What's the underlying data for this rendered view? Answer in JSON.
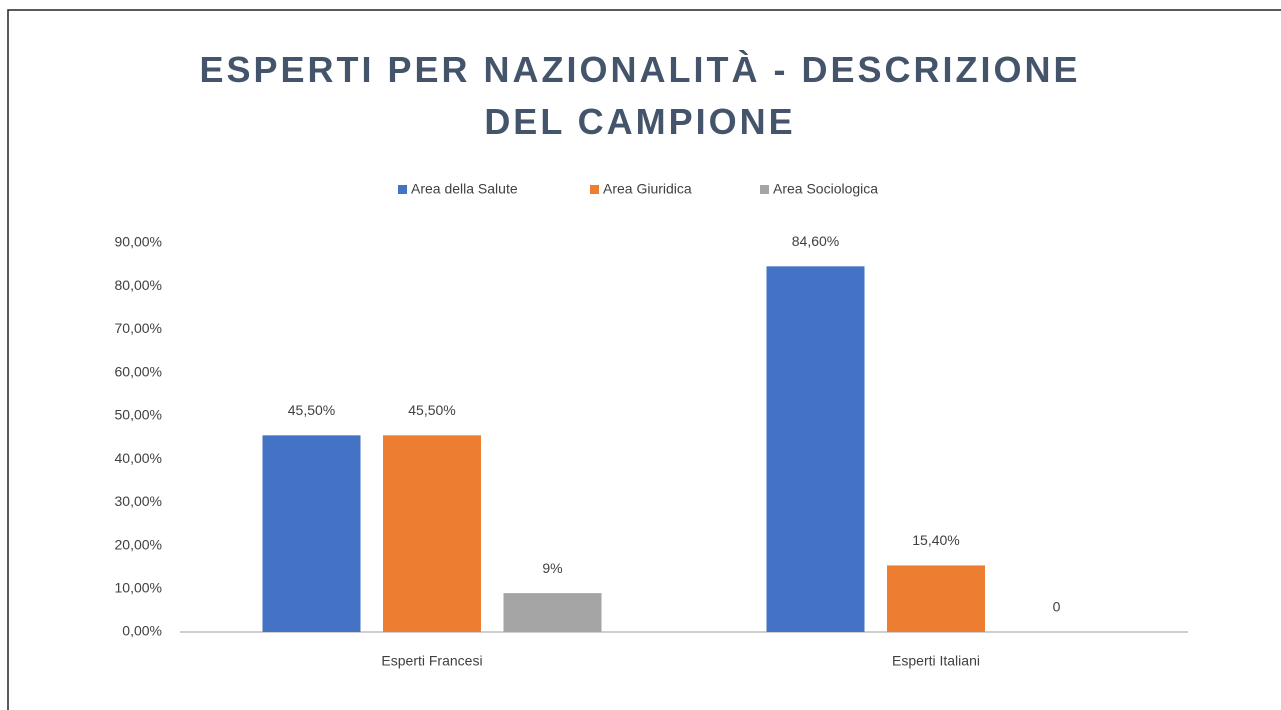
{
  "chart_data": {
    "type": "bar",
    "title": "ESPERTI PER NAZIONALITÀ - DESCRIZIONE DEL CAMPIONE",
    "categories": [
      "Esperti Francesi",
      "Esperti Italiani"
    ],
    "series": [
      {
        "name": "Area della Salute",
        "color": "#4472c4",
        "values": [
          45.5,
          84.6
        ],
        "value_labels": [
          "45,50%",
          "84,60%"
        ]
      },
      {
        "name": "Area Giuridica",
        "color": "#ed7d31",
        "values": [
          45.5,
          15.4
        ],
        "value_labels": [
          "45,50%",
          "15,40%"
        ]
      },
      {
        "name": "Area Sociologica",
        "color": "#a5a5a5",
        "values": [
          9,
          0
        ],
        "value_labels": [
          "9%",
          "0"
        ]
      }
    ],
    "ylim": [
      0,
      90
    ],
    "yticks": [
      {
        "value": 0,
        "label": "0,00%"
      },
      {
        "value": 10,
        "label": "10,00%"
      },
      {
        "value": 20,
        "label": "20,00%"
      },
      {
        "value": 30,
        "label": "30,00%"
      },
      {
        "value": 40,
        "label": "40,00%"
      },
      {
        "value": 50,
        "label": "50,00%"
      },
      {
        "value": 60,
        "label": "60,00%"
      },
      {
        "value": 70,
        "label": "70,00%"
      },
      {
        "value": 80,
        "label": "80,00%"
      },
      {
        "value": 90,
        "label": "90,00%"
      }
    ],
    "legend": "top",
    "grid": false
  }
}
